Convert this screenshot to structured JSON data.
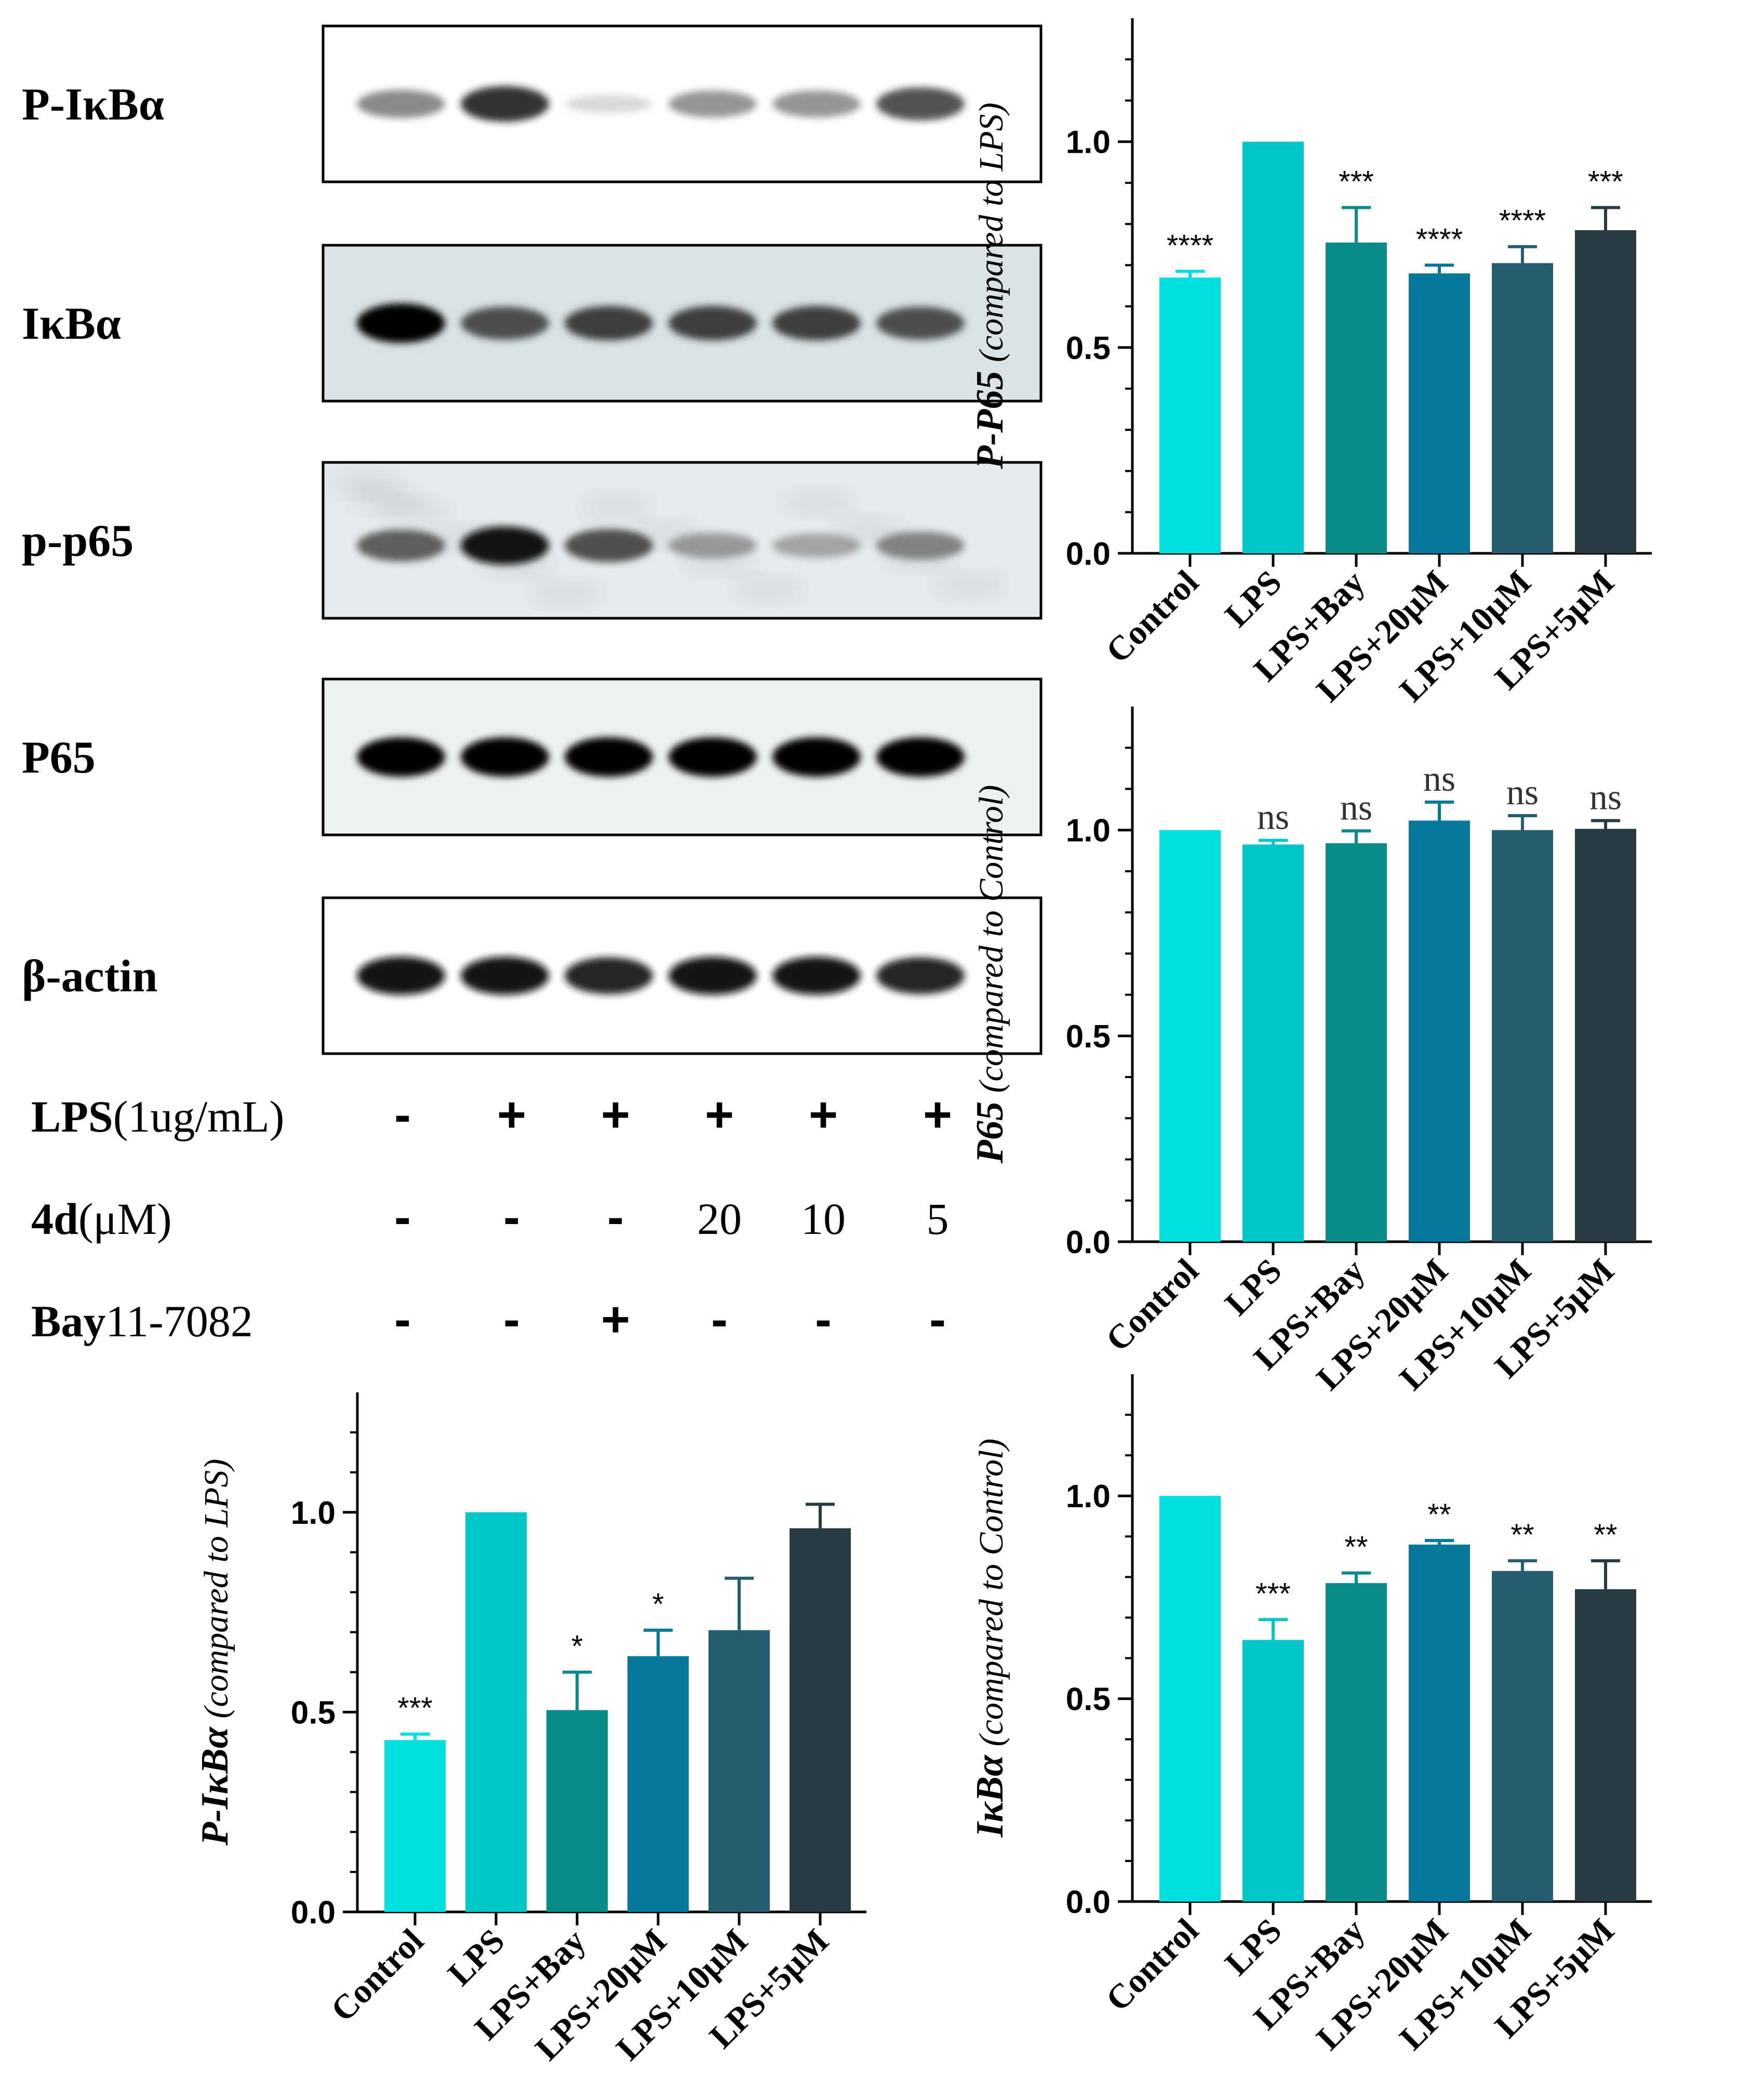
{
  "blot": {
    "rows": [
      {
        "label": "P-IκBα",
        "intensity": [
          0.55,
          0.85,
          0.15,
          0.5,
          0.5,
          0.75
        ],
        "background": "#ffffff",
        "noise": 0.05
      },
      {
        "label": "IκBα",
        "intensity": [
          1.0,
          0.75,
          0.8,
          0.8,
          0.8,
          0.75
        ],
        "background": "#d9e2e4",
        "noise": 0.1
      },
      {
        "label": "p-p65",
        "intensity": [
          0.7,
          0.95,
          0.75,
          0.45,
          0.4,
          0.55
        ],
        "background": "#e6eaec",
        "noise": 0.35
      },
      {
        "label": "P65",
        "intensity": [
          1.0,
          1.0,
          1.0,
          1.0,
          1.0,
          1.0
        ],
        "background": "#eef1f2",
        "noise": 0.1
      },
      {
        "label": "β-actin",
        "intensity": [
          0.95,
          0.95,
          0.9,
          0.95,
          0.95,
          0.9
        ],
        "background": "#ffffff",
        "noise": 0.05
      }
    ],
    "conditions": [
      {
        "name_bold": "LPS",
        "name_rest": "(1ug/mL)",
        "values": [
          "-",
          "+",
          "+",
          "+",
          "+",
          "+"
        ]
      },
      {
        "name_bold": "4d",
        "name_rest": "(μM)",
        "values": [
          "-",
          "-",
          "-",
          "20",
          "10",
          "5"
        ]
      },
      {
        "name_bold": "Bay",
        "name_rest": "11-7082",
        "values": [
          "-",
          "-",
          "+",
          "-",
          "-",
          "-"
        ]
      }
    ]
  },
  "colors": [
    "#00dfdf",
    "#00c6c9",
    "#088b8a",
    "#06789a",
    "#245c70",
    "#263b42"
  ],
  "chart_data": [
    {
      "type": "bar",
      "ylabel_main": "P-P65",
      "ylabel_rest": " (compared to LPS)",
      "categories": [
        "Control",
        "LPS",
        "LPS+Bay",
        "LPS+20μM",
        "LPS+10μM",
        "LPS+5μM"
      ],
      "values": [
        0.67,
        1.0,
        0.755,
        0.68,
        0.705,
        0.785
      ],
      "errors": [
        0.015,
        0,
        0.085,
        0.02,
        0.04,
        0.055
      ],
      "annotations": [
        "****",
        "",
        "***",
        "****",
        "****",
        "***"
      ],
      "ylim": [
        0,
        1.3
      ],
      "yticks": [
        "0.0",
        "0.5",
        "1.0"
      ]
    },
    {
      "type": "bar",
      "ylabel_main": "P65",
      "ylabel_rest": " (compared to Control)",
      "categories": [
        "Control",
        "LPS",
        "LPS+Bay",
        "LPS+20μM",
        "LPS+10μM",
        "LPS+5μM"
      ],
      "values": [
        1.0,
        0.965,
        0.968,
        1.023,
        1.0,
        1.003
      ],
      "errors": [
        0,
        0.01,
        0.03,
        0.045,
        0.035,
        0.02
      ],
      "annotations": [
        "",
        "ns",
        "ns",
        "ns",
        "ns",
        "ns"
      ],
      "ylim": [
        0,
        1.3
      ],
      "yticks": [
        "0.0",
        "0.5",
        "1.0"
      ]
    },
    {
      "type": "bar",
      "ylabel_main": "P-IκBα",
      "ylabel_rest": " (compared to LPS)",
      "categories": [
        "Control",
        "LPS",
        "LPS+Bay",
        "LPS+20μM",
        "LPS+10μM",
        "LPS+5μM"
      ],
      "values": [
        0.43,
        1.0,
        0.505,
        0.64,
        0.705,
        0.96
      ],
      "errors": [
        0.015,
        0,
        0.095,
        0.065,
        0.13,
        0.06
      ],
      "annotations": [
        "***",
        "",
        "*",
        "*",
        "",
        ""
      ],
      "ylim": [
        0,
        1.3
      ],
      "yticks": [
        "0.0",
        "0.5",
        "1.0"
      ]
    },
    {
      "type": "bar",
      "ylabel_main": "IκBα",
      "ylabel_rest": " (compared to Control)",
      "categories": [
        "Control",
        "LPS",
        "LPS+Bay",
        "LPS+20μM",
        "LPS+10μM",
        "LPS+5μM"
      ],
      "values": [
        1.0,
        0.645,
        0.785,
        0.88,
        0.815,
        0.77
      ],
      "errors": [
        0,
        0.05,
        0.025,
        0.01,
        0.025,
        0.07
      ],
      "annotations": [
        "",
        "***",
        "**",
        "**",
        "**",
        "**"
      ],
      "ylim": [
        0,
        1.3
      ],
      "yticks": [
        "0.0",
        "0.5",
        "1.0"
      ]
    }
  ]
}
